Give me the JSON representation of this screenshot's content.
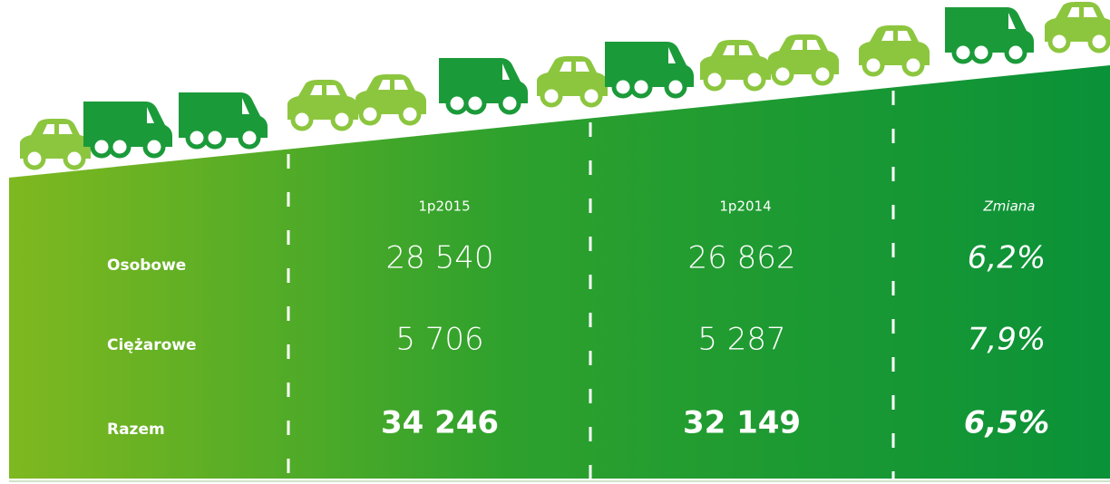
{
  "table": {
    "header": [
      "1p2015",
      "1p2014",
      "Zmiana"
    ],
    "rows": [
      [
        "Osobowe",
        "28 540",
        "26 862",
        "6,2%"
      ],
      [
        "Ciężarowe",
        "5 706",
        "5 287",
        "7,9%"
      ],
      [
        "Razem",
        "34 246",
        "32 149",
        "6,5%"
      ]
    ]
  }
}
